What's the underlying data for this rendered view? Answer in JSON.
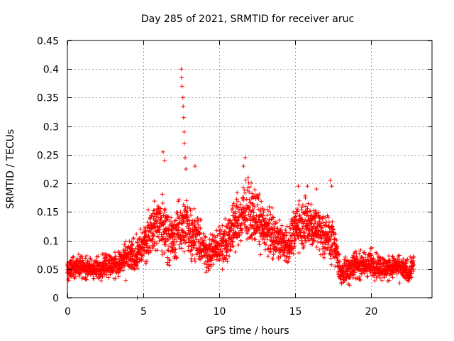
{
  "chart_data": {
    "type": "scatter",
    "title": "Day 285 of 2021, SRMTID for receiver aruc",
    "xlabel": "GPS time / hours",
    "ylabel": "SRMTID / TECUs",
    "xlim": [
      0,
      24
    ],
    "ylim": [
      0,
      0.45
    ],
    "x_ticks": [
      0,
      5,
      10,
      15,
      20
    ],
    "x_tick_labels": [
      "0",
      "5",
      "10",
      "15",
      "20"
    ],
    "y_ticks": [
      0,
      0.05,
      0.1,
      0.15,
      0.2,
      0.25,
      0.3,
      0.35,
      0.4,
      0.45
    ],
    "y_tick_labels": [
      "0",
      "0.05",
      "0.1",
      "0.15",
      "0.2",
      "0.25",
      "0.3",
      "0.35",
      "0.4",
      "0.45"
    ],
    "grid": true,
    "marker": "plus",
    "series": [
      {
        "name": "SRMTID",
        "color": "#ff0000",
        "envelope": {
          "hours": [
            0.0,
            0.5,
            1.0,
            1.5,
            2.0,
            2.5,
            3.0,
            3.5,
            4.0,
            4.5,
            5.0,
            5.5,
            6.0,
            6.5,
            7.0,
            7.5,
            8.0,
            8.5,
            9.0,
            9.5,
            10.0,
            10.5,
            11.0,
            11.5,
            12.0,
            12.5,
            13.0,
            13.5,
            14.0,
            14.5,
            15.0,
            15.5,
            16.0,
            16.5,
            17.0,
            17.5,
            18.0,
            18.5,
            19.0,
            19.5,
            20.0,
            20.5,
            21.0,
            21.5,
            22.0,
            22.5,
            22.8
          ],
          "typical": [
            0.05,
            0.055,
            0.055,
            0.05,
            0.05,
            0.06,
            0.055,
            0.06,
            0.07,
            0.075,
            0.09,
            0.12,
            0.13,
            0.12,
            0.1,
            0.13,
            0.12,
            0.11,
            0.08,
            0.08,
            0.09,
            0.1,
            0.13,
            0.14,
            0.15,
            0.14,
            0.12,
            0.11,
            0.1,
            0.09,
            0.12,
            0.13,
            0.13,
            0.12,
            0.11,
            0.1,
            0.04,
            0.05,
            0.06,
            0.055,
            0.06,
            0.055,
            0.05,
            0.055,
            0.05,
            0.045,
            0.06
          ],
          "spread": [
            0.02,
            0.02,
            0.02,
            0.02,
            0.02,
            0.025,
            0.02,
            0.025,
            0.03,
            0.03,
            0.035,
            0.04,
            0.05,
            0.05,
            0.04,
            0.05,
            0.05,
            0.04,
            0.035,
            0.03,
            0.035,
            0.04,
            0.045,
            0.05,
            0.05,
            0.045,
            0.04,
            0.04,
            0.035,
            0.035,
            0.04,
            0.045,
            0.045,
            0.045,
            0.04,
            0.04,
            0.02,
            0.025,
            0.025,
            0.025,
            0.025,
            0.025,
            0.02,
            0.02,
            0.02,
            0.02,
            0.02
          ]
        },
        "spikes": [
          {
            "x": 4.6,
            "y": 0.0
          },
          {
            "x": 6.3,
            "y": 0.255
          },
          {
            "x": 6.4,
            "y": 0.24
          },
          {
            "x": 7.5,
            "y": 0.4
          },
          {
            "x": 7.52,
            "y": 0.385
          },
          {
            "x": 7.55,
            "y": 0.37
          },
          {
            "x": 7.6,
            "y": 0.35
          },
          {
            "x": 7.62,
            "y": 0.335
          },
          {
            "x": 7.65,
            "y": 0.315
          },
          {
            "x": 7.68,
            "y": 0.29
          },
          {
            "x": 7.7,
            "y": 0.27
          },
          {
            "x": 7.75,
            "y": 0.245
          },
          {
            "x": 7.8,
            "y": 0.225
          },
          {
            "x": 8.4,
            "y": 0.23
          },
          {
            "x": 11.7,
            "y": 0.245
          },
          {
            "x": 11.6,
            "y": 0.23
          },
          {
            "x": 11.9,
            "y": 0.21
          },
          {
            "x": 15.2,
            "y": 0.195
          },
          {
            "x": 15.8,
            "y": 0.195
          },
          {
            "x": 16.4,
            "y": 0.19
          },
          {
            "x": 17.3,
            "y": 0.205
          },
          {
            "x": 17.4,
            "y": 0.195
          }
        ]
      }
    ]
  }
}
